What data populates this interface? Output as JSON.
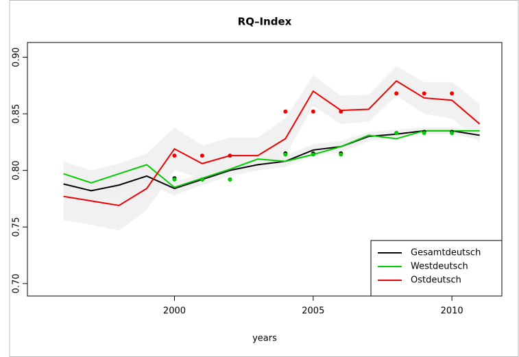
{
  "chart_data": {
    "type": "line",
    "title": "RQ–Index",
    "x_label": "years",
    "x": [
      1996,
      1997,
      1998,
      1999,
      2000,
      2001,
      2002,
      2003,
      2004,
      2005,
      2006,
      2007,
      2008,
      2009,
      2010,
      2011
    ],
    "point_x": [
      2000,
      2001,
      2002,
      2004,
      2005,
      2006,
      2008,
      2009,
      2010
    ],
    "series": [
      {
        "name": "Gesamtdeutsch",
        "color": "#000000",
        "values": [
          0.788,
          0.782,
          0.787,
          0.795,
          0.784,
          0.792,
          0.8,
          0.805,
          0.808,
          0.818,
          0.821,
          0.83,
          0.832,
          0.835,
          0.835,
          0.831
        ],
        "band_upper": [
          0.796,
          0.79,
          0.795,
          0.802,
          0.79,
          0.797,
          0.805,
          0.81,
          0.813,
          0.823,
          0.826,
          0.834,
          0.836,
          0.838,
          0.838,
          0.835
        ],
        "band_lower": [
          0.78,
          0.774,
          0.779,
          0.788,
          0.778,
          0.787,
          0.795,
          0.8,
          0.803,
          0.813,
          0.816,
          0.826,
          0.828,
          0.832,
          0.832,
          0.827
        ],
        "point_values": [
          0.793,
          0.792,
          0.792,
          0.815,
          0.815,
          0.815,
          0.833,
          0.834,
          0.834
        ]
      },
      {
        "name": "Westdeutsch",
        "color": "#00cc00",
        "values": [
          0.797,
          0.789,
          0.797,
          0.805,
          0.785,
          0.793,
          0.801,
          0.81,
          0.808,
          0.814,
          0.821,
          0.831,
          0.828,
          0.835,
          0.835,
          0.835
        ],
        "point_values": [
          0.792,
          0.792,
          0.792,
          0.814,
          0.814,
          0.814,
          0.833,
          0.833,
          0.833
        ]
      },
      {
        "name": "Ostdeutsch",
        "color": "#ee0000",
        "values": [
          0.777,
          0.773,
          0.769,
          0.784,
          0.819,
          0.806,
          0.813,
          0.813,
          0.828,
          0.87,
          0.853,
          0.854,
          0.879,
          0.864,
          0.862,
          0.841
        ],
        "band_upper": [
          0.808,
          0.8,
          0.806,
          0.815,
          0.838,
          0.822,
          0.829,
          0.829,
          0.846,
          0.884,
          0.866,
          0.867,
          0.892,
          0.878,
          0.878,
          0.859
        ],
        "band_lower": [
          0.756,
          0.752,
          0.747,
          0.765,
          0.8,
          0.793,
          0.8,
          0.8,
          0.813,
          0.857,
          0.841,
          0.843,
          0.866,
          0.85,
          0.846,
          0.825
        ],
        "point_values": [
          0.813,
          0.813,
          0.813,
          0.852,
          0.852,
          0.852,
          0.868,
          0.868,
          0.868
        ]
      }
    ],
    "band_color": "#efefef",
    "xlim": [
      1994.7,
      2011.8
    ],
    "xticks": [
      2000,
      2005,
      2010
    ],
    "ylim": [
      0.689,
      0.913
    ],
    "yticks": [
      {
        "value": 0.7,
        "label": "0.70"
      },
      {
        "value": 0.75,
        "label": "0.75"
      },
      {
        "value": 0.8,
        "label": "0.80"
      },
      {
        "value": 0.85,
        "label": "0.85"
      },
      {
        "value": 0.9,
        "label": "0.90"
      }
    ],
    "legend": "bottom-right"
  }
}
